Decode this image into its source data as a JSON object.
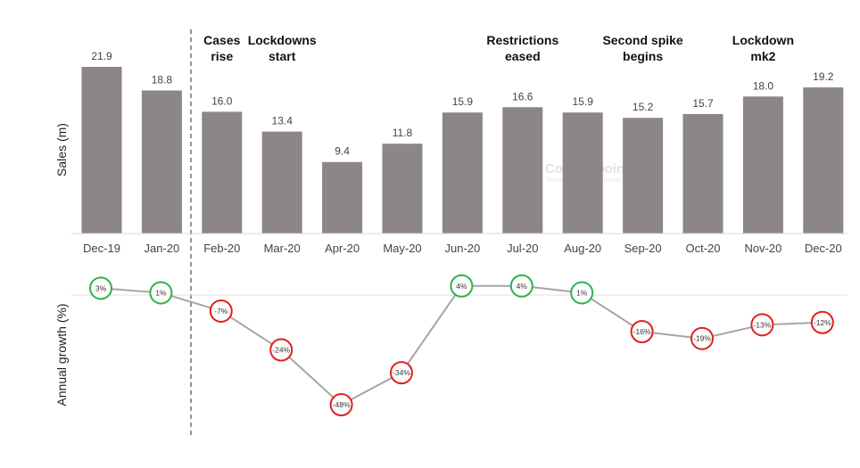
{
  "chart_data": [
    {
      "type": "bar",
      "title": "",
      "ylabel": "Sales (m)",
      "xlabel": "",
      "categories": [
        "Dec-19",
        "Jan-20",
        "Feb-20",
        "Mar-20",
        "Apr-20",
        "May-20",
        "Jun-20",
        "Jul-20",
        "Aug-20",
        "Sep-20",
        "Oct-20",
        "Nov-20",
        "Dec-20"
      ],
      "values": [
        21.9,
        18.8,
        16.0,
        13.4,
        9.4,
        11.8,
        15.9,
        16.6,
        15.9,
        15.2,
        15.7,
        18.0,
        19.2
      ],
      "value_labels": [
        "21.9",
        "18.8",
        "16.0",
        "13.4",
        "9.4",
        "11.8",
        "15.9",
        "16.6",
        "15.9",
        "15.2",
        "15.7",
        "18.0",
        "19.2"
      ],
      "ylim": [
        0,
        22
      ],
      "bar_color": "#8c8686",
      "grid": false
    },
    {
      "type": "line",
      "title": "",
      "ylabel": "Annual growth (%)",
      "xlabel": "",
      "categories": [
        "Dec-19",
        "Jan-20",
        "Feb-20",
        "Mar-20",
        "Apr-20",
        "May-20",
        "Jun-20",
        "Jul-20",
        "Aug-20",
        "Sep-20",
        "Oct-20",
        "Nov-20",
        "Dec-20"
      ],
      "values": [
        3,
        1,
        -7,
        -24,
        -48,
        -34,
        4,
        4,
        1,
        -16,
        -19,
        -13,
        -12
      ],
      "value_labels": [
        "3%",
        "1%",
        "-7%",
        "-24%",
        "-48%",
        "-34%",
        "4%",
        "4%",
        "1%",
        "-16%",
        "-19%",
        "-13%",
        "-12%"
      ],
      "positive_marker_color": "#2db24a",
      "negative_marker_color": "#e02020",
      "line_color": "#a8a4a4",
      "zero_line": true
    }
  ],
  "annotations": [
    {
      "lines": [
        "Cases",
        "rise"
      ],
      "at": "Feb-20"
    },
    {
      "lines": [
        "Lockdowns",
        "start"
      ],
      "at": "Mar-20"
    },
    {
      "lines": [
        "Restrictions",
        "eased"
      ],
      "at": "Jul-20"
    },
    {
      "lines": [
        "Second spike",
        "begins"
      ],
      "at": "Sep-20"
    },
    {
      "lines": [
        "Lockdown",
        "mk2"
      ],
      "at": "Nov-20"
    }
  ],
  "divider_between": [
    "Jan-20",
    "Feb-20"
  ],
  "watermark": {
    "name": "Counterpoint",
    "tagline": "Technology Market Research"
  }
}
